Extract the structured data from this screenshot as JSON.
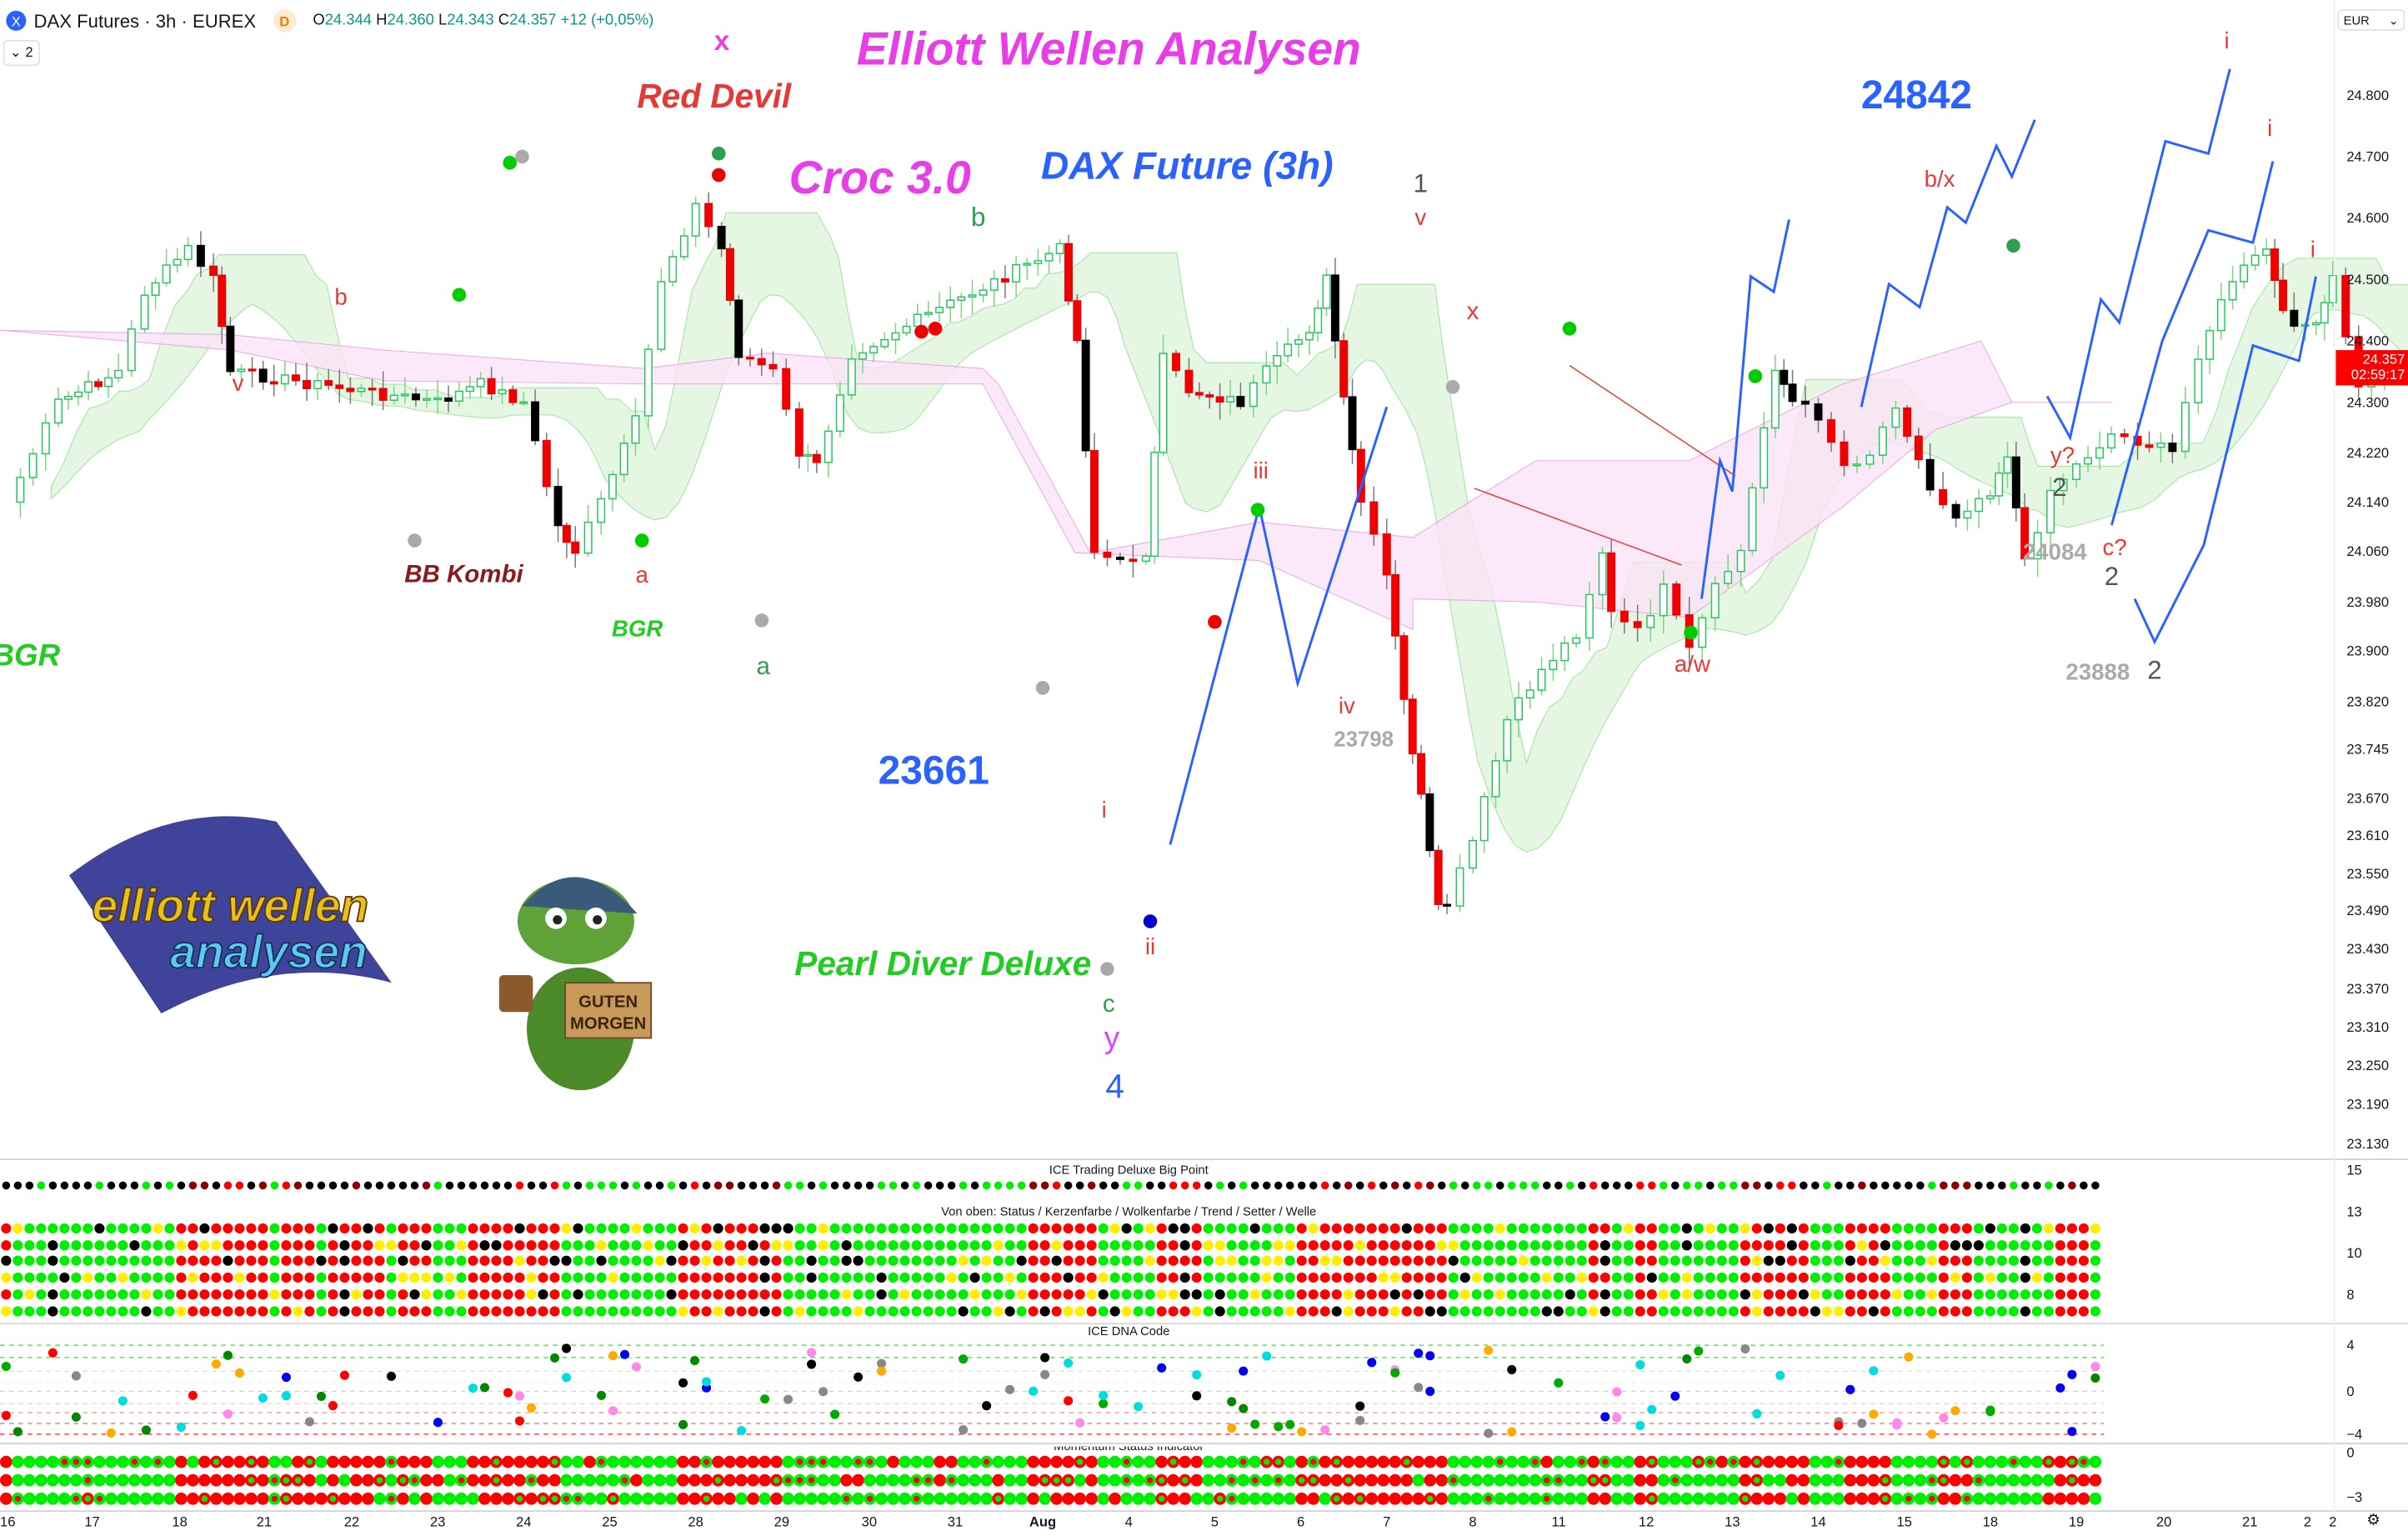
{
  "header": {
    "symbol_icon": "X",
    "title": "DAX Futures · 3h · EUREX",
    "badge": "D",
    "open_label": "O",
    "open": "24.344",
    "high_label": "H",
    "high": "24.360",
    "low_label": "L",
    "low": "24.343",
    "close_label": "C",
    "close": "24.357",
    "change": "+12 (+0,05%)",
    "collapse_button": "⌄ 2"
  },
  "currency": {
    "label": "EUR",
    "icon": "chevron-down-icon"
  },
  "price_axis": {
    "ticks": [
      "24.800",
      "24.700",
      "24.600",
      "24.500",
      "24.400",
      "24.300",
      "24.220",
      "24.140",
      "24.060",
      "23.980",
      "23.900",
      "23.820",
      "23.745",
      "23.670",
      "23.610",
      "23.550",
      "23.490",
      "23.430",
      "23.370",
      "23.310",
      "23.250",
      "23.190",
      "23.130"
    ],
    "current_price": "24.357",
    "countdown": "02:59:17"
  },
  "time_axis": {
    "ticks": [
      "16",
      "17",
      "18",
      "21",
      "22",
      "23",
      "24",
      "25",
      "28",
      "29",
      "30",
      "31",
      "Aug",
      "4",
      "5",
      "6",
      "7",
      "8",
      "11",
      "12",
      "13",
      "14",
      "15",
      "18",
      "19",
      "20",
      "21",
      "2"
    ]
  },
  "annotations": {
    "main_title": "Elliott Wellen Analysen",
    "x_mark": "x",
    "red_devil": "Red Devil",
    "croc": "Croc 3.0",
    "dax_future": "DAX Future (3h)",
    "high_level": "24842",
    "low_level": "23661",
    "pearl_diver": "Pearl Diver Deluxe",
    "bb_kombi": "BB Kombi",
    "bgr1": "BGR",
    "bgr2": "BGR"
  },
  "wave_labels": [
    {
      "t": "1",
      "c": "#555555"
    },
    {
      "t": "v",
      "c": "#e53935"
    },
    {
      "t": "b",
      "c": "#2e9e4f"
    },
    {
      "t": "b",
      "c": "#e53935"
    },
    {
      "t": "v",
      "c": "#e53935"
    },
    {
      "t": "x",
      "c": "#e53935"
    },
    {
      "t": "iii",
      "c": "#e53935"
    },
    {
      "t": "iv",
      "c": "#e53935"
    },
    {
      "t": "23798",
      "c": "#aaaaaa"
    },
    {
      "t": "a",
      "c": "#e53935"
    },
    {
      "t": "a",
      "c": "#2e9e4f"
    },
    {
      "t": "i",
      "c": "#e53935"
    },
    {
      "t": "ii",
      "c": "#e53935"
    },
    {
      "t": "c",
      "c": "#2e9e4f"
    },
    {
      "t": "y",
      "c": "#e040fb"
    },
    {
      "t": "4",
      "c": "#2962ff"
    },
    {
      "t": "a/w",
      "c": "#e53935"
    },
    {
      "t": "b/x",
      "c": "#e53935"
    },
    {
      "t": "y?",
      "c": "#e53935"
    },
    {
      "t": "2",
      "c": "#555555"
    },
    {
      "t": "24084",
      "c": "#aaaaaa"
    },
    {
      "t": "c?",
      "c": "#e53935"
    },
    {
      "t": "2",
      "c": "#555555"
    },
    {
      "t": "23888",
      "c": "#aaaaaa"
    },
    {
      "t": "2",
      "c": "#555555"
    },
    {
      "t": "i",
      "c": "#e53935"
    },
    {
      "t": "i",
      "c": "#e53935"
    },
    {
      "t": "i",
      "c": "#e53935"
    }
  ],
  "logos": {
    "ewa": "elliott wellen analysen",
    "croc_sign": "GUTEN MORGEN"
  },
  "price_path": [
    [
      16.0,
      24140
    ],
    [
      16.3,
      24220
    ],
    [
      16.6,
      24300
    ],
    [
      17.3,
      24350
    ],
    [
      17.6,
      24480
    ],
    [
      18.1,
      24550
    ],
    [
      18.4,
      24500
    ],
    [
      18.6,
      24350
    ],
    [
      21.0,
      24300
    ],
    [
      21.5,
      24330
    ],
    [
      22.0,
      24300
    ],
    [
      22.4,
      24100
    ],
    [
      22.6,
      24060
    ],
    [
      22.9,
      24140
    ],
    [
      23.3,
      24270
    ],
    [
      23.6,
      24500
    ],
    [
      24.0,
      24620
    ],
    [
      24.3,
      24550
    ],
    [
      24.5,
      24380
    ],
    [
      24.9,
      24350
    ],
    [
      25.2,
      24220
    ],
    [
      25.4,
      24200
    ],
    [
      25.8,
      24380
    ],
    [
      28.2,
      24550
    ],
    [
      28.4,
      24400
    ],
    [
      28.6,
      24060
    ],
    [
      28.9,
      24040
    ],
    [
      29.2,
      24060
    ],
    [
      29.4,
      24370
    ],
    [
      29.7,
      24320
    ],
    [
      30.3,
      24300
    ],
    [
      30.6,
      24350
    ],
    [
      31.1,
      24420
    ],
    [
      31.3,
      24500
    ],
    [
      31.5,
      24300
    ],
    [
      31.7,
      24140
    ],
    [
      32.0,
      24020
    ],
    [
      32.2,
      23820
    ],
    [
      32.4,
      23670
    ],
    [
      32.6,
      23490
    ],
    [
      32.7,
      23500
    ],
    [
      33.0,
      23600
    ],
    [
      33.4,
      23790
    ],
    [
      33.8,
      23870
    ],
    [
      34.2,
      23930
    ],
    [
      34.5,
      24060
    ],
    [
      34.6,
      23960
    ],
    [
      34.9,
      23930
    ],
    [
      35.2,
      24000
    ],
    [
      35.5,
      23900
    ],
    [
      35.8,
      24000
    ],
    [
      36.1,
      24060
    ],
    [
      36.5,
      24360
    ],
    [
      36.7,
      24300
    ],
    [
      37.0,
      24280
    ],
    [
      37.3,
      24200
    ],
    [
      37.6,
      24220
    ],
    [
      37.9,
      24300
    ],
    [
      38.3,
      24160
    ],
    [
      38.6,
      24120
    ],
    [
      39.0,
      24160
    ],
    [
      39.2,
      24220
    ],
    [
      39.4,
      24040
    ],
    [
      39.7,
      24160
    ],
    [
      40.0,
      24200
    ],
    [
      40.4,
      24250
    ],
    [
      40.7,
      24240
    ],
    [
      41.1,
      24220
    ],
    [
      41.4,
      24380
    ],
    [
      41.8,
      24500
    ],
    [
      42.2,
      24550
    ],
    [
      42.4,
      24440
    ],
    [
      42.8,
      24420
    ],
    [
      43.0,
      24500
    ],
    [
      43.3,
      24320
    ],
    [
      43.6,
      24350
    ],
    [
      43.9,
      24380
    ],
    [
      44.3,
      24357
    ]
  ],
  "panels": {
    "big_point_title": "ICE Trading Deluxe Big Point",
    "status_title": "Von oben: Status / Kerzenfarbe / Wolkenfarbe / Trend / Setter / Welle",
    "dna_title": "ICE DNA Code",
    "momentum_title": "Momentum Status Indicator",
    "p1_ticks": [
      "15",
      "13",
      "10",
      "8"
    ],
    "p2_ticks": [
      "4",
      "0",
      "−4"
    ],
    "p3_ticks": [
      "0",
      "−3"
    ],
    "bottom_scale": "2",
    "settings_icon": "gear-icon"
  },
  "colors": {
    "up": "#22c55e",
    "down": "#f00000",
    "wave_projection": "#2962ff",
    "cloud_pink": "#fbe3f7",
    "cloud_green": "#e3f7df",
    "dot_green": "#00ee00",
    "dot_red": "#ff0000",
    "dot_black": "#000000",
    "dot_yellow": "#ffee00",
    "dot_darkred": "#8b0000"
  }
}
